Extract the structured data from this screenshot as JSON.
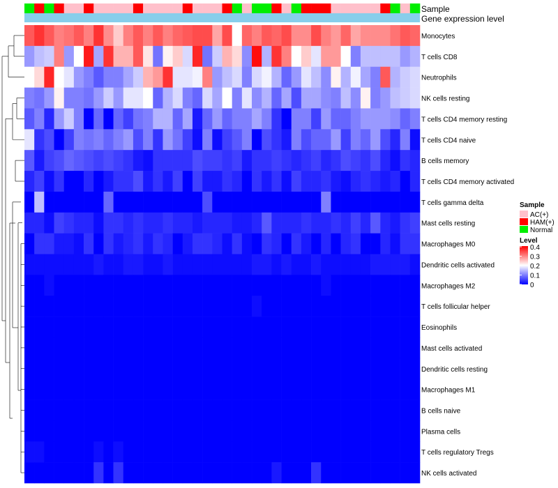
{
  "chart_data": {
    "type": "heatmap",
    "annotation_labels": {
      "sample": "Sample",
      "gene": "Gene expression level"
    },
    "sample_groups": [
      "Normal",
      "HAM(+)",
      "Normal",
      "HAM(+)",
      "AC(+)",
      "AC(+)",
      "HAM(+)",
      "AC(+)",
      "AC(+)",
      "AC(+)",
      "AC(+)",
      "HAM(+)",
      "AC(+)",
      "AC(+)",
      "AC(+)",
      "AC(+)",
      "HAM(+)",
      "AC(+)",
      "AC(+)",
      "AC(+)",
      "HAM(+)",
      "Normal",
      "AC(+)",
      "Normal",
      "Normal",
      "HAM(+)",
      "AC(+)",
      "Normal",
      "HAM(+)",
      "HAM(+)",
      "HAM(+)",
      "AC(+)",
      "AC(+)",
      "AC(+)",
      "AC(+)",
      "AC(+)",
      "HAM(+)",
      "Normal",
      "AC(+)",
      "Normal"
    ],
    "rows": [
      "Monocytes",
      "T cells CD8",
      "Neutrophils",
      "NK cells resting",
      "T cells CD4 memory resting",
      "T cells CD4 naive",
      "B cells memory",
      "T cells CD4 memory activated",
      "T cells gamma delta",
      "Mast cells resting",
      "Macrophages M0",
      "Dendritic cells activated",
      "Macrophages M2",
      "T cells follicular helper",
      "Eosinophils",
      "Mast cells activated",
      "Dendritic cells resting",
      "Macrophages M1",
      "B cells naive",
      "Plasma cells",
      "T cells regulatory  Tregs",
      "NK cells activated"
    ],
    "values": [
      [
        0.33,
        0.36,
        0.33,
        0.3,
        0.31,
        0.33,
        0.3,
        0.36,
        0.29,
        0.24,
        0.3,
        0.33,
        0.3,
        0.33,
        0.3,
        0.32,
        0.33,
        0.34,
        0.34,
        0.27,
        0.34,
        0.2,
        0.32,
        0.3,
        0.33,
        0.32,
        0.34,
        0.29,
        0.29,
        0.34,
        0.3,
        0.28,
        0.32,
        0.27,
        0.29,
        0.29,
        0.29,
        0.31,
        0.33,
        0.32
      ],
      [
        0.12,
        0.15,
        0.16,
        0.3,
        0.12,
        0.2,
        0.38,
        0.13,
        0.36,
        0.26,
        0.26,
        0.33,
        0.22,
        0.09,
        0.21,
        0.24,
        0.17,
        0.37,
        0.09,
        0.16,
        0.26,
        0.23,
        0.11,
        0.39,
        0.14,
        0.36,
        0.3,
        0.2,
        0.24,
        0.18,
        0.28,
        0.28,
        0.2,
        0.1,
        0.15,
        0.15,
        0.15,
        0.15,
        0.12,
        0.14
      ],
      [
        0.2,
        0.23,
        0.37,
        0.2,
        0.18,
        0.12,
        0.1,
        0.07,
        0.1,
        0.1,
        0.13,
        0.16,
        0.26,
        0.28,
        0.36,
        0.18,
        0.18,
        0.19,
        0.3,
        0.12,
        0.15,
        0.17,
        0.1,
        0.17,
        0.19,
        0.14,
        0.08,
        0.12,
        0.18,
        0.15,
        0.11,
        0.21,
        0.14,
        0.19,
        0.13,
        0.1,
        0.33,
        0.14,
        0.16,
        0.17
      ],
      [
        0.1,
        0.09,
        0.12,
        0.21,
        0.1,
        0.1,
        0.09,
        0.12,
        0.16,
        0.12,
        0.18,
        0.18,
        0.2,
        0.08,
        0.14,
        0.17,
        0.1,
        0.08,
        0.17,
        0.13,
        0.2,
        0.1,
        0.18,
        0.11,
        0.14,
        0.08,
        0.13,
        0.06,
        0.13,
        0.13,
        0.11,
        0.1,
        0.15,
        0.11,
        0.21,
        0.1,
        0.12,
        0.15,
        0.16,
        0.17
      ],
      [
        0.07,
        0.1,
        0.03,
        0.12,
        0.16,
        0.1,
        0.0,
        0.08,
        0.0,
        0.08,
        0.05,
        0.09,
        0.1,
        0.14,
        0.14,
        0.08,
        0.13,
        0.02,
        0.08,
        0.12,
        0.08,
        0.1,
        0.1,
        0.13,
        0.1,
        0.04,
        0.0,
        0.1,
        0.1,
        0.05,
        0.12,
        0.08,
        0.08,
        0.1,
        0.12,
        0.12,
        0.12,
        0.11,
        0.08,
        0.1
      ],
      [
        0.18,
        0.04,
        0.06,
        0.0,
        0.05,
        0.1,
        0.09,
        0.1,
        0.08,
        0.1,
        0.12,
        0.06,
        0.1,
        0.04,
        0.12,
        0.09,
        0.05,
        0.01,
        0.1,
        0.01,
        0.05,
        0.07,
        0.1,
        0.0,
        0.06,
        0.04,
        0.02,
        0.1,
        0.06,
        0.08,
        0.08,
        0.12,
        0.05,
        0.1,
        0.08,
        0.12,
        0.06,
        0.03,
        0.1,
        0.01
      ],
      [
        0.07,
        0.02,
        0.05,
        0.06,
        0.08,
        0.07,
        0.06,
        0.05,
        0.06,
        0.05,
        0.04,
        0.02,
        0.01,
        0.04,
        0.04,
        0.04,
        0.04,
        0.06,
        0.05,
        0.05,
        0.04,
        0.05,
        0.02,
        0.04,
        0.04,
        0.05,
        0.04,
        0.03,
        0.04,
        0.05,
        0.03,
        0.04,
        0.06,
        0.05,
        0.04,
        0.06,
        0.03,
        0.01,
        0.04,
        0.03
      ],
      [
        0.03,
        0.05,
        0.01,
        0.04,
        0.0,
        0.0,
        0.03,
        0.0,
        0.02,
        0.04,
        0.04,
        0.06,
        0.02,
        0.04,
        0.02,
        0.05,
        0.0,
        0.05,
        0.02,
        0.02,
        0.04,
        0.03,
        0.0,
        0.04,
        0.02,
        0.04,
        0.01,
        0.05,
        0.03,
        0.03,
        0.04,
        0.02,
        0.01,
        0.03,
        0.04,
        0.03,
        0.02,
        0.03,
        0.0,
        0.03
      ],
      [
        0.0,
        0.15,
        0.0,
        0.0,
        0.0,
        0.0,
        0.0,
        0.0,
        0.08,
        0.0,
        0.0,
        0.0,
        0.0,
        0.0,
        0.0,
        0.0,
        0.0,
        0.0,
        0.06,
        0.0,
        0.0,
        0.0,
        0.0,
        0.0,
        0.0,
        0.0,
        0.0,
        0.0,
        0.0,
        0.0,
        0.1,
        0.0,
        0.0,
        0.0,
        0.0,
        0.0,
        0.0,
        0.0,
        0.0,
        0.0
      ],
      [
        0.03,
        0.03,
        0.01,
        0.05,
        0.04,
        0.03,
        0.03,
        0.01,
        0.04,
        0.04,
        0.03,
        0.04,
        0.03,
        0.03,
        0.04,
        0.03,
        0.03,
        0.02,
        0.03,
        0.03,
        0.03,
        0.02,
        0.02,
        0.03,
        0.07,
        0.03,
        0.03,
        0.03,
        0.04,
        0.03,
        0.03,
        0.04,
        0.03,
        0.05,
        0.03,
        0.07,
        0.03,
        0.02,
        0.04,
        0.05
      ],
      [
        0.0,
        0.04,
        0.04,
        0.02,
        0.02,
        0.01,
        0.04,
        0.0,
        0.04,
        0.02,
        0.03,
        0.04,
        0.02,
        0.04,
        0.03,
        0.0,
        0.02,
        0.04,
        0.04,
        0.03,
        0.01,
        0.04,
        0.01,
        0.0,
        0.04,
        0.03,
        0.0,
        0.04,
        0.02,
        0.0,
        0.03,
        0.0,
        0.03,
        0.04,
        0.0,
        0.0,
        0.03,
        0.01,
        0.04,
        0.04
      ],
      [
        0.01,
        0.01,
        0.01,
        0.01,
        0.01,
        0.01,
        0.01,
        0.02,
        0.01,
        0.01,
        0.02,
        0.02,
        0.01,
        0.01,
        0.02,
        0.01,
        0.01,
        0.01,
        0.01,
        0.01,
        0.01,
        0.01,
        0.01,
        0.02,
        0.02,
        0.01,
        0.02,
        0.01,
        0.01,
        0.02,
        0.01,
        0.01,
        0.01,
        0.01,
        0.01,
        0.02,
        0.02,
        0.02,
        0.02,
        0.01
      ],
      [
        0.0,
        0.0,
        0.01,
        0.0,
        0.0,
        0.0,
        0.0,
        0.0,
        0.0,
        0.0,
        0.0,
        0.0,
        0.0,
        0.0,
        0.0,
        0.0,
        0.0,
        0.0,
        0.0,
        0.0,
        0.0,
        0.0,
        0.0,
        0.0,
        0.0,
        0.0,
        0.0,
        0.0,
        0.0,
        0.0,
        0.01,
        0.0,
        0.0,
        0.0,
        0.0,
        0.0,
        0.0,
        0.0,
        0.0,
        0.0
      ],
      [
        0.0,
        0.0,
        0.0,
        0.0,
        0.0,
        0.0,
        0.0,
        0.0,
        0.0,
        0.0,
        0.0,
        0.0,
        0.0,
        0.0,
        0.0,
        0.0,
        0.0,
        0.0,
        0.0,
        0.0,
        0.0,
        0.0,
        0.0,
        0.01,
        0.0,
        0.0,
        0.0,
        0.0,
        0.0,
        0.0,
        0.0,
        0.0,
        0.0,
        0.0,
        0.0,
        0.0,
        0.0,
        0.0,
        0.0,
        0.0
      ],
      [
        0.0,
        0.0,
        0.0,
        0.0,
        0.0,
        0.0,
        0.0,
        0.0,
        0.0,
        0.0,
        0.0,
        0.0,
        0.0,
        0.0,
        0.0,
        0.0,
        0.0,
        0.0,
        0.0,
        0.0,
        0.0,
        0.0,
        0.0,
        0.0,
        0.0,
        0.0,
        0.0,
        0.0,
        0.0,
        0.0,
        0.0,
        0.0,
        0.0,
        0.0,
        0.0,
        0.0,
        0.0,
        0.0,
        0.0,
        0.0
      ],
      [
        0.0,
        0.0,
        0.0,
        0.0,
        0.0,
        0.0,
        0.0,
        0.0,
        0.0,
        0.0,
        0.0,
        0.0,
        0.0,
        0.0,
        0.0,
        0.0,
        0.0,
        0.0,
        0.0,
        0.0,
        0.0,
        0.0,
        0.0,
        0.0,
        0.0,
        0.0,
        0.0,
        0.0,
        0.0,
        0.0,
        0.0,
        0.0,
        0.0,
        0.0,
        0.0,
        0.0,
        0.0,
        0.0,
        0.0,
        0.0
      ],
      [
        0.0,
        0.0,
        0.0,
        0.0,
        0.0,
        0.0,
        0.0,
        0.0,
        0.0,
        0.0,
        0.0,
        0.0,
        0.0,
        0.0,
        0.0,
        0.0,
        0.0,
        0.0,
        0.0,
        0.0,
        0.0,
        0.0,
        0.0,
        0.0,
        0.0,
        0.0,
        0.0,
        0.0,
        0.0,
        0.0,
        0.0,
        0.0,
        0.0,
        0.0,
        0.0,
        0.0,
        0.0,
        0.0,
        0.0,
        0.0
      ],
      [
        0.0,
        0.0,
        0.0,
        0.0,
        0.0,
        0.0,
        0.0,
        0.0,
        0.0,
        0.0,
        0.0,
        0.0,
        0.0,
        0.0,
        0.0,
        0.0,
        0.0,
        0.0,
        0.0,
        0.0,
        0.0,
        0.0,
        0.0,
        0.0,
        0.0,
        0.0,
        0.0,
        0.0,
        0.0,
        0.0,
        0.0,
        0.0,
        0.0,
        0.0,
        0.0,
        0.0,
        0.0,
        0.0,
        0.0,
        0.0
      ],
      [
        0.0,
        0.0,
        0.0,
        0.0,
        0.0,
        0.0,
        0.0,
        0.0,
        0.0,
        0.0,
        0.0,
        0.0,
        0.0,
        0.0,
        0.0,
        0.0,
        0.0,
        0.0,
        0.0,
        0.0,
        0.0,
        0.0,
        0.0,
        0.0,
        0.0,
        0.0,
        0.0,
        0.0,
        0.0,
        0.0,
        0.0,
        0.0,
        0.0,
        0.0,
        0.0,
        0.0,
        0.0,
        0.0,
        0.0,
        0.0
      ],
      [
        0.0,
        0.0,
        0.0,
        0.0,
        0.0,
        0.0,
        0.0,
        0.0,
        0.0,
        0.0,
        0.0,
        0.0,
        0.0,
        0.0,
        0.0,
        0.0,
        0.0,
        0.0,
        0.0,
        0.0,
        0.0,
        0.0,
        0.0,
        0.0,
        0.0,
        0.0,
        0.0,
        0.0,
        0.0,
        0.0,
        0.0,
        0.0,
        0.0,
        0.0,
        0.0,
        0.0,
        0.0,
        0.0,
        0.0,
        0.0
      ],
      [
        0.01,
        0.01,
        0.0,
        0.0,
        0.0,
        0.0,
        0.0,
        0.01,
        0.0,
        0.01,
        0.0,
        0.0,
        0.0,
        0.0,
        0.0,
        0.0,
        0.0,
        0.0,
        0.0,
        0.0,
        0.0,
        0.0,
        0.0,
        0.0,
        0.0,
        0.0,
        0.0,
        0.0,
        0.0,
        0.0,
        0.0,
        0.0,
        0.0,
        0.0,
        0.0,
        0.0,
        0.0,
        0.0,
        0.0,
        0.0
      ],
      [
        0.0,
        0.0,
        0.0,
        0.0,
        0.0,
        0.0,
        0.0,
        0.04,
        0.0,
        0.04,
        0.0,
        0.0,
        0.0,
        0.0,
        0.0,
        0.0,
        0.0,
        0.0,
        0.0,
        0.0,
        0.0,
        0.0,
        0.0,
        0.0,
        0.0,
        0.02,
        0.0,
        0.0,
        0.0,
        0.04,
        0.0,
        0.0,
        0.0,
        0.0,
        0.0,
        0.0,
        0.0,
        0.0,
        0.0,
        0.0
      ]
    ],
    "legend_sample": {
      "title": "Sample",
      "items": [
        "AC(+)",
        "HAM(+)",
        "Normal"
      ]
    },
    "legend_level": {
      "title": "Level",
      "ticks": [
        "0.4",
        "0.3",
        "0.2",
        "0.1",
        "0"
      ],
      "range": [
        0,
        0.4
      ]
    },
    "colors": {
      "low": "#0000ff",
      "mid": "#ffffff",
      "high": "#ff0000",
      "AC(+)": "#ffc0cb",
      "HAM(+)": "#ff0000",
      "Normal": "#00ee00",
      "gene_bar": "#87ceeb"
    }
  }
}
